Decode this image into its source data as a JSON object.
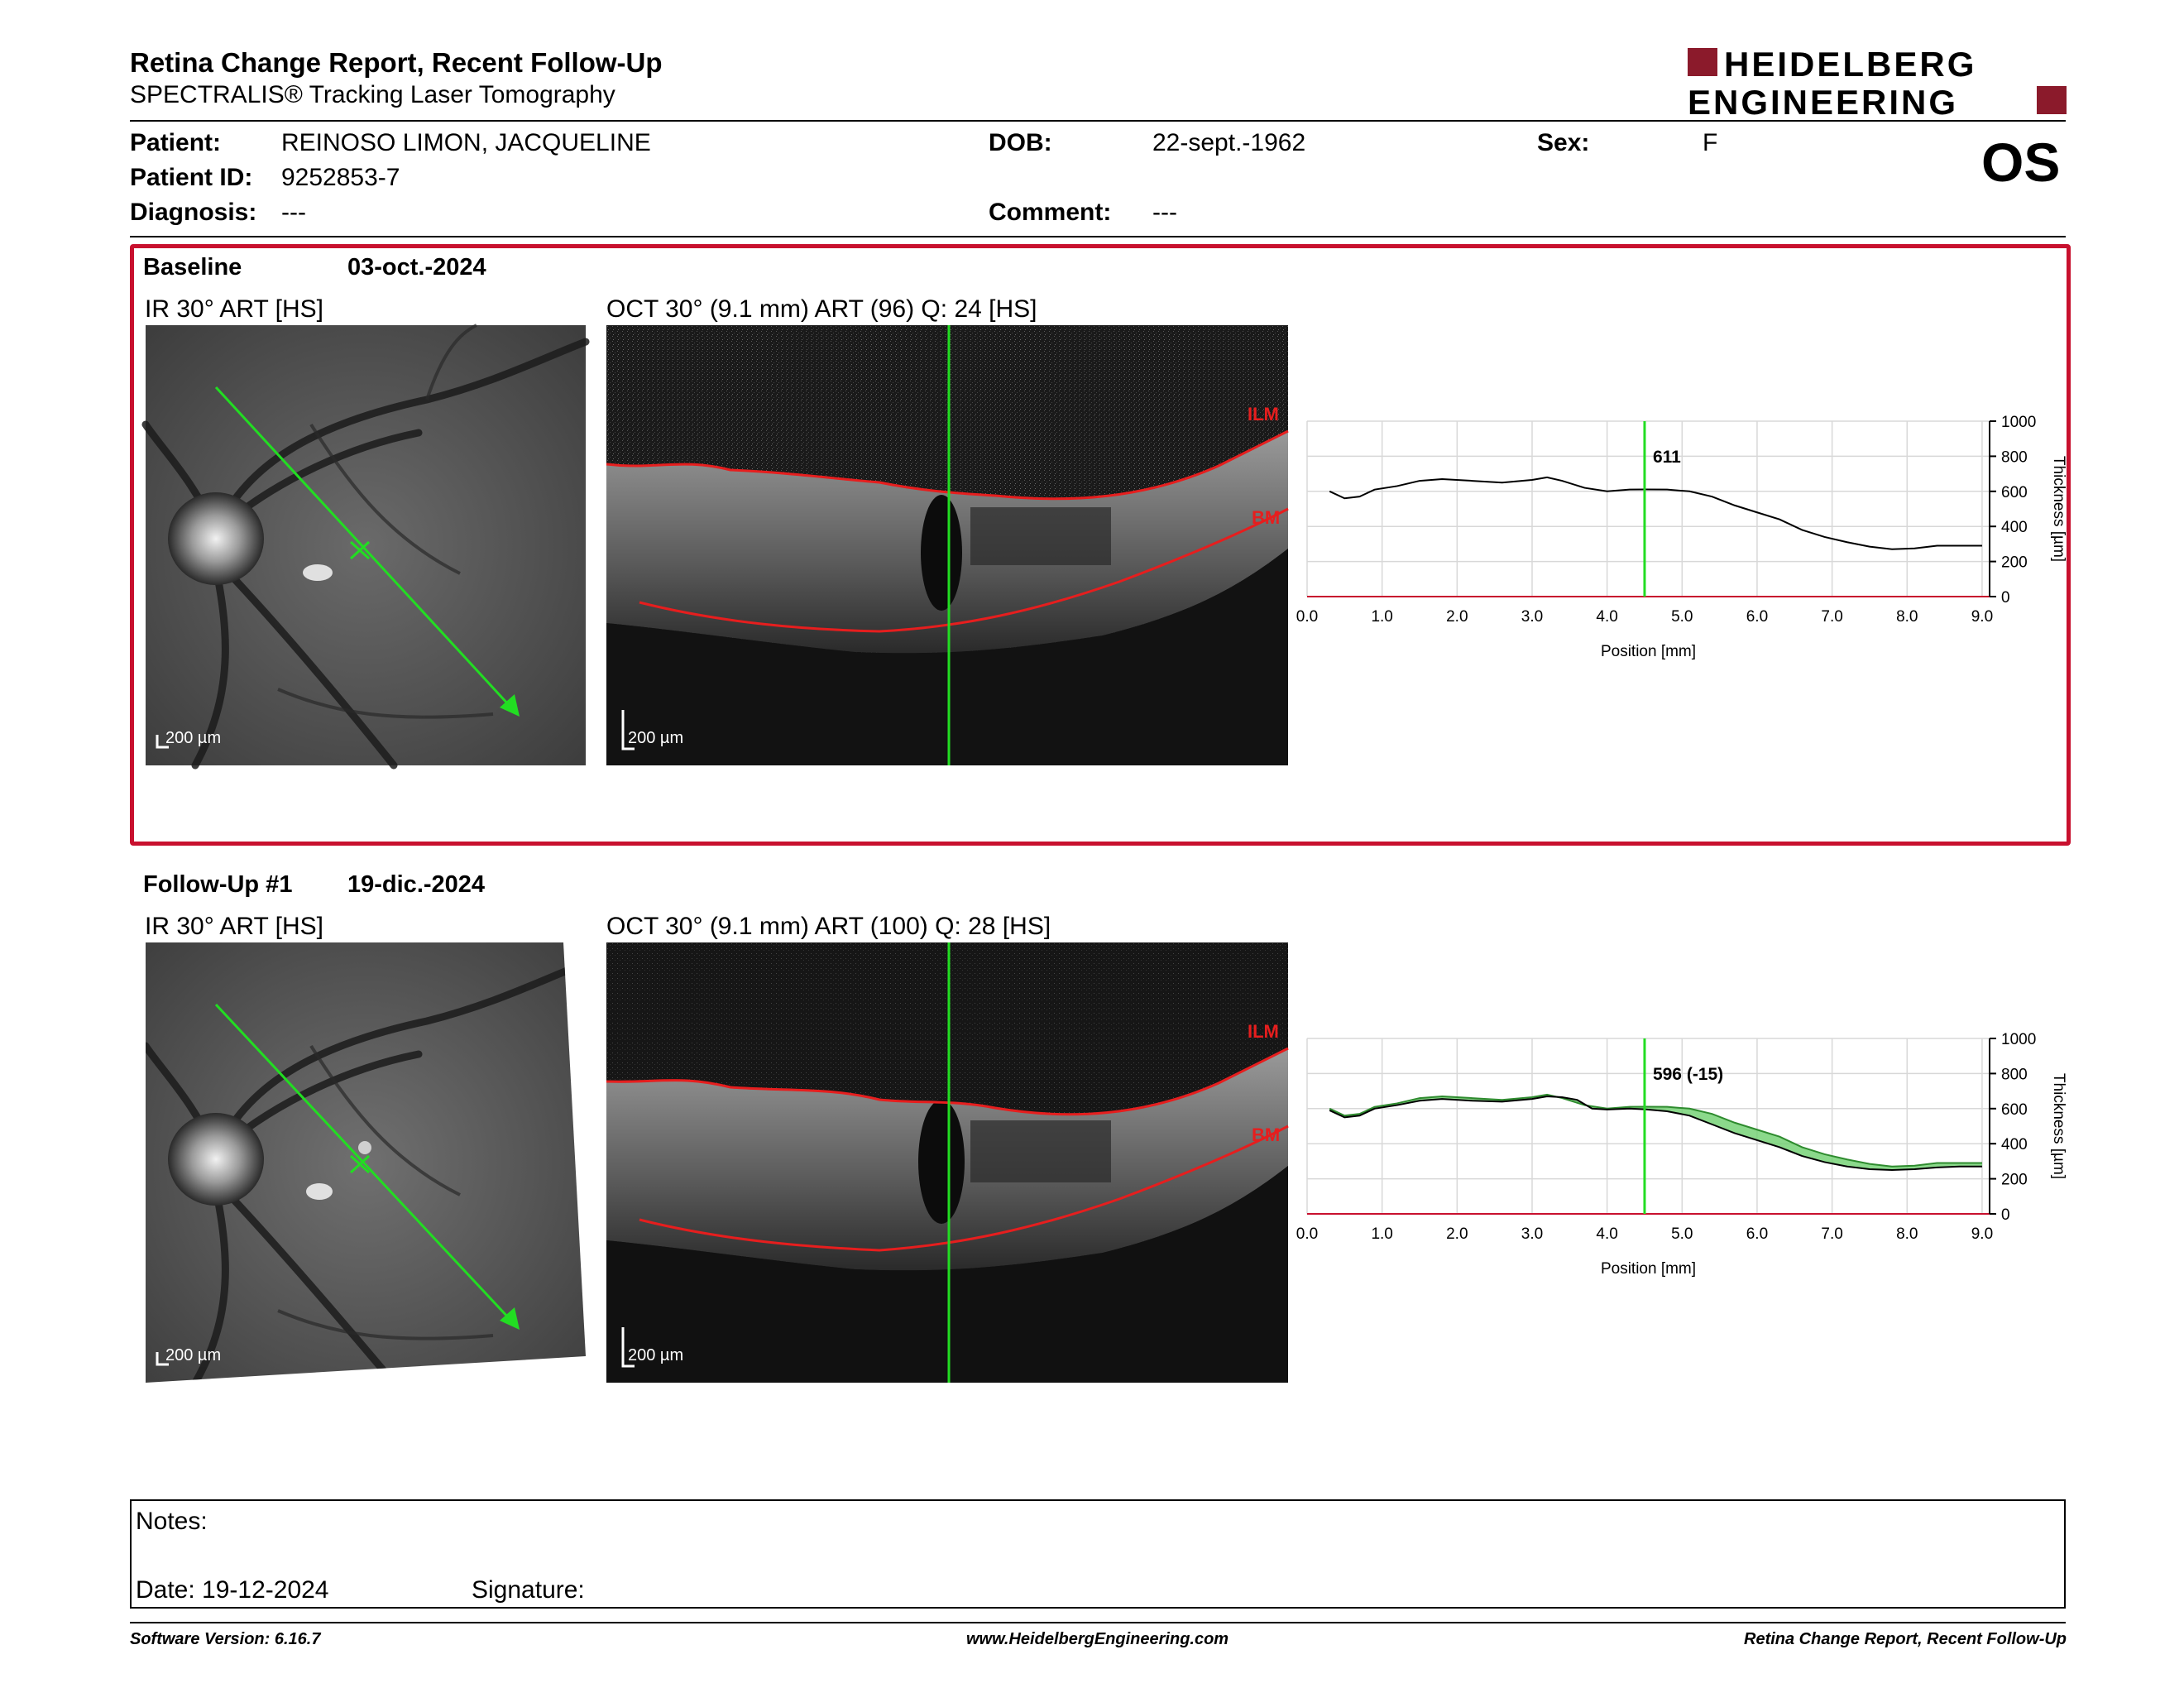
{
  "header": {
    "title": "Retina Change Report, Recent Follow-Up",
    "subtitle": "SPECTRALIS® Tracking Laser Tomography",
    "logo_line1": "HEIDELBERG",
    "logo_line2": "ENGINEERING",
    "eye": "OS"
  },
  "patient": {
    "patient_label": "Patient:",
    "patient_value": "REINOSO LIMON, JACQUELINE",
    "id_label": "Patient ID:",
    "id_value": "9252853-7",
    "diagnosis_label": "Diagnosis:",
    "diagnosis_value": "---",
    "dob_label": "DOB:",
    "dob_value": "22-sept.-1962",
    "comment_label": "Comment:",
    "comment_value": "---",
    "sex_label": "Sex:",
    "sex_value": "F"
  },
  "baseline": {
    "label": "Baseline",
    "date": "03-oct.-2024",
    "ir_caption": "IR 30° ART [HS]",
    "oct_caption": "OCT 30° (9.1 mm) ART (96) Q: 24 [HS]",
    "scale_ir": "200 µm",
    "scale_oct": "200 µm",
    "ilm": "ILM",
    "bm": "BM",
    "marker_label": "611"
  },
  "followup": {
    "label": "Follow-Up #1",
    "date": "19-dic.-2024",
    "ir_caption": "IR 30° ART [HS]",
    "oct_caption": "OCT 30° (9.1 mm) ART (100) Q: 28 [HS]",
    "scale_ir": "200 µm",
    "scale_oct": "200 µm",
    "ilm": "ILM",
    "bm": "BM",
    "marker_label": "596 (-15)"
  },
  "chart_data": [
    {
      "type": "line",
      "xlabel": "Position [mm]",
      "ylabel": "Thickness [µm]",
      "xlim": [
        0,
        9.1
      ],
      "ylim": [
        0,
        1000
      ],
      "x_ticks": [
        "0.0",
        "1.0",
        "2.0",
        "3.0",
        "4.0",
        "5.0",
        "6.0",
        "7.0",
        "8.0",
        "9.0"
      ],
      "y_ticks": [
        "0",
        "200",
        "400",
        "600",
        "800",
        "1000"
      ],
      "grid": true,
      "marker_x": 4.5,
      "series": [
        {
          "values": [
            [
              0.3,
              600
            ],
            [
              0.5,
              560
            ],
            [
              0.7,
              570
            ],
            [
              0.9,
              610
            ],
            [
              1.2,
              630
            ],
            [
              1.5,
              660
            ],
            [
              1.8,
              670
            ],
            [
              2.2,
              660
            ],
            [
              2.6,
              650
            ],
            [
              3.0,
              665
            ],
            [
              3.2,
              680
            ],
            [
              3.4,
              660
            ],
            [
              3.7,
              620
            ],
            [
              4.0,
              600
            ],
            [
              4.3,
              610
            ],
            [
              4.5,
              611
            ],
            [
              4.8,
              610
            ],
            [
              5.1,
              600
            ],
            [
              5.4,
              570
            ],
            [
              5.7,
              520
            ],
            [
              6.0,
              480
            ],
            [
              6.3,
              440
            ],
            [
              6.6,
              380
            ],
            [
              6.9,
              340
            ],
            [
              7.2,
              310
            ],
            [
              7.5,
              285
            ],
            [
              7.8,
              270
            ],
            [
              8.1,
              275
            ],
            [
              8.4,
              290
            ],
            [
              8.7,
              290
            ],
            [
              9.0,
              290
            ]
          ]
        }
      ]
    },
    {
      "type": "line",
      "xlabel": "Position [mm]",
      "ylabel": "Thickness [µm]",
      "xlim": [
        0,
        9.1
      ],
      "ylim": [
        0,
        1000
      ],
      "x_ticks": [
        "0.0",
        "1.0",
        "2.0",
        "3.0",
        "4.0",
        "5.0",
        "6.0",
        "7.0",
        "8.0",
        "9.0"
      ],
      "y_ticks": [
        "0",
        "200",
        "400",
        "600",
        "800",
        "1000"
      ],
      "grid": true,
      "marker_x": 4.5,
      "series": [
        {
          "values": [
            [
              0.3,
              590
            ],
            [
              0.5,
              550
            ],
            [
              0.7,
              560
            ],
            [
              0.9,
              600
            ],
            [
              1.2,
              620
            ],
            [
              1.5,
              645
            ],
            [
              1.8,
              655
            ],
            [
              2.2,
              645
            ],
            [
              2.6,
              640
            ],
            [
              3.0,
              655
            ],
            [
              3.2,
              670
            ],
            [
              3.4,
              665
            ],
            [
              3.6,
              650
            ],
            [
              3.8,
              600
            ],
            [
              4.0,
              595
            ],
            [
              4.3,
              600
            ],
            [
              4.5,
              596
            ],
            [
              4.8,
              585
            ],
            [
              5.1,
              560
            ],
            [
              5.4,
              510
            ],
            [
              5.7,
              460
            ],
            [
              6.0,
              420
            ],
            [
              6.3,
              380
            ],
            [
              6.6,
              330
            ],
            [
              6.9,
              295
            ],
            [
              7.2,
              270
            ],
            [
              7.5,
              255
            ],
            [
              7.8,
              250
            ],
            [
              8.1,
              255
            ],
            [
              8.4,
              265
            ],
            [
              8.7,
              270
            ],
            [
              9.0,
              270
            ]
          ]
        },
        {
          "values": [
            [
              0.3,
              600
            ],
            [
              0.5,
              560
            ],
            [
              0.7,
              570
            ],
            [
              0.9,
              610
            ],
            [
              1.2,
              630
            ],
            [
              1.5,
              660
            ],
            [
              1.8,
              670
            ],
            [
              2.2,
              660
            ],
            [
              2.6,
              650
            ],
            [
              3.0,
              665
            ],
            [
              3.2,
              680
            ],
            [
              3.4,
              660
            ],
            [
              3.7,
              620
            ],
            [
              4.0,
              600
            ],
            [
              4.3,
              610
            ],
            [
              4.5,
              611
            ],
            [
              4.8,
              610
            ],
            [
              5.1,
              600
            ],
            [
              5.4,
              570
            ],
            [
              5.7,
              520
            ],
            [
              6.0,
              480
            ],
            [
              6.3,
              440
            ],
            [
              6.6,
              380
            ],
            [
              6.9,
              340
            ],
            [
              7.2,
              310
            ],
            [
              7.5,
              285
            ],
            [
              7.8,
              270
            ],
            [
              8.1,
              275
            ],
            [
              8.4,
              290
            ],
            [
              8.7,
              290
            ],
            [
              9.0,
              290
            ]
          ]
        }
      ]
    }
  ],
  "notes": {
    "label": "Notes:",
    "date_label": "Date: 19-12-2024",
    "signature_label": "Signature:"
  },
  "footer": {
    "left": "Software Version: 6.16.7",
    "center": "www.HeidelbergEngineering.com",
    "right": "Retina Change Report, Recent Follow-Up"
  }
}
